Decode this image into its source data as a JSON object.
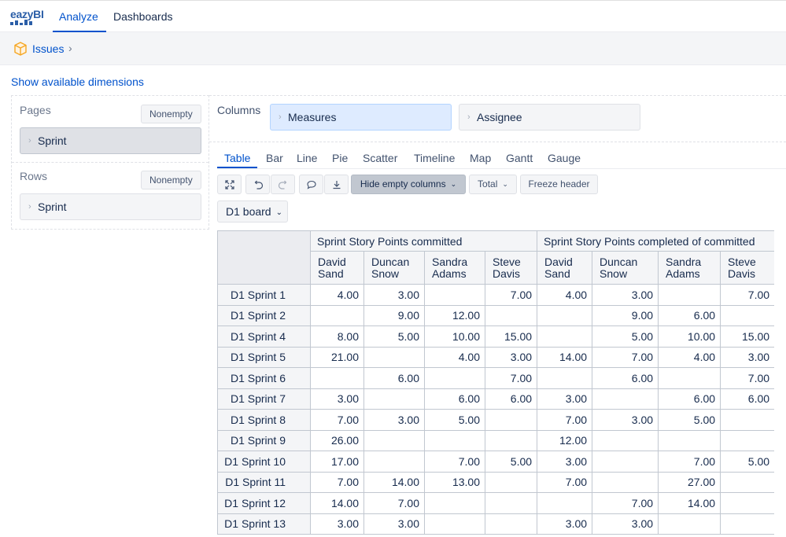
{
  "app": {
    "logo_text": "eazyBI",
    "nav": {
      "analyze": "Analyze",
      "dashboards": "Dashboards"
    },
    "accent_color": "#0052cc"
  },
  "breadcrumb": {
    "label": "Issues",
    "icon": "cube-icon",
    "chevron": "›"
  },
  "show_dimensions": "Show available dimensions",
  "pages": {
    "label": "Pages",
    "nonempty": "Nonempty",
    "dimension": "Sprint"
  },
  "rows": {
    "label": "Rows",
    "nonempty": "Nonempty",
    "dimension": "Sprint"
  },
  "columns": {
    "label": "Columns",
    "dimensions": [
      "Measures",
      "Assignee"
    ]
  },
  "chart_tabs": [
    "Table",
    "Bar",
    "Line",
    "Pie",
    "Scatter",
    "Timeline",
    "Map",
    "Gantt",
    "Gauge"
  ],
  "active_chart_tab": "Table",
  "toolbar": {
    "icons": [
      "expand-icon",
      "undo-icon",
      "redo-icon",
      "comment-icon",
      "export-icon"
    ],
    "hide_empty_columns": "Hide empty columns",
    "total": "Total",
    "freeze_header": "Freeze header"
  },
  "page_filter": {
    "selected": "D1 board"
  },
  "table": {
    "groups": [
      "Sprint Story Points committed",
      "Sprint Story Points completed of committed"
    ],
    "assignees": [
      [
        "David",
        "Sand"
      ],
      [
        "Duncan",
        "Snow"
      ],
      [
        "Sandra",
        "Adams"
      ],
      [
        "Steve",
        "Davis"
      ]
    ],
    "rows": [
      {
        "label": "D1 Sprint 1",
        "values": [
          "4.00",
          "3.00",
          "",
          "7.00",
          "4.00",
          "3.00",
          "",
          "7.00"
        ]
      },
      {
        "label": "D1 Sprint 2",
        "values": [
          "",
          "9.00",
          "12.00",
          "",
          "",
          "9.00",
          "6.00",
          ""
        ]
      },
      {
        "label": "D1 Sprint 4",
        "values": [
          "8.00",
          "5.00",
          "10.00",
          "15.00",
          "",
          "5.00",
          "10.00",
          "15.00"
        ]
      },
      {
        "label": "D1 Sprint 5",
        "values": [
          "21.00",
          "",
          "4.00",
          "3.00",
          "14.00",
          "7.00",
          "4.00",
          "3.00"
        ]
      },
      {
        "label": "D1 Sprint 6",
        "values": [
          "",
          "6.00",
          "",
          "7.00",
          "",
          "6.00",
          "",
          "7.00"
        ]
      },
      {
        "label": "D1 Sprint 7",
        "values": [
          "3.00",
          "",
          "6.00",
          "6.00",
          "3.00",
          "",
          "6.00",
          "6.00"
        ]
      },
      {
        "label": "D1 Sprint 8",
        "values": [
          "7.00",
          "3.00",
          "5.00",
          "",
          "7.00",
          "3.00",
          "5.00",
          ""
        ]
      },
      {
        "label": "D1 Sprint 9",
        "values": [
          "26.00",
          "",
          "",
          "",
          "12.00",
          "",
          "",
          ""
        ]
      },
      {
        "label": "D1 Sprint 10",
        "values": [
          "17.00",
          "",
          "7.00",
          "5.00",
          "3.00",
          "",
          "7.00",
          "5.00"
        ]
      },
      {
        "label": "D1 Sprint 11",
        "values": [
          "7.00",
          "14.00",
          "13.00",
          "",
          "7.00",
          "",
          "27.00",
          ""
        ]
      },
      {
        "label": "D1 Sprint 12",
        "values": [
          "14.00",
          "7.00",
          "",
          "",
          "",
          "7.00",
          "14.00",
          ""
        ]
      },
      {
        "label": "D1 Sprint 13",
        "values": [
          "3.00",
          "3.00",
          "",
          "",
          "3.00",
          "3.00",
          "",
          ""
        ]
      }
    ]
  }
}
